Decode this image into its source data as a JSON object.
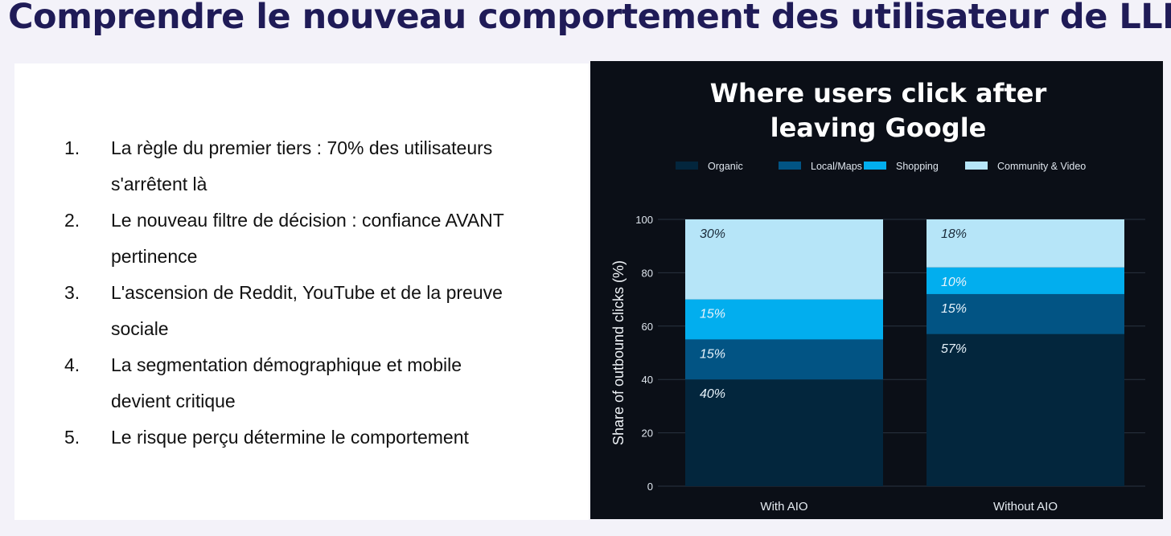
{
  "slide": {
    "title": "Comprendre le nouveau comportement des utilisateur de LLM"
  },
  "points": [
    {
      "num": "1.",
      "text": "La règle du premier tiers : 70% des utilisateurs s'arrêtent là"
    },
    {
      "num": "2.",
      "text": "Le nouveau filtre de décision : confiance AVANT pertinence"
    },
    {
      "num": "3.",
      "text": "L'ascension de Reddit, YouTube et de la preuve sociale"
    },
    {
      "num": "4.",
      "text": "La segmentation démographique et mobile devient critique"
    },
    {
      "num": "5.",
      "text": "Le risque perçu détermine le comportement"
    }
  ],
  "chart_data": {
    "type": "bar",
    "stacked": true,
    "title": [
      "Where users click after",
      "leaving Google"
    ],
    "ylabel": "Share of outbound clicks (%)",
    "xlabel": "",
    "ylim": [
      0,
      100
    ],
    "yticks": [
      0,
      20,
      40,
      60,
      80,
      100
    ],
    "grid": true,
    "legend_position": "top",
    "categories": [
      "With AIO",
      "Without AIO"
    ],
    "series": [
      {
        "name": "Organic",
        "color": "#03263d",
        "values": [
          40,
          57
        ],
        "labels": [
          "40%",
          "57%"
        ]
      },
      {
        "name": "Local/Maps",
        "color": "#025484",
        "values": [
          15,
          15
        ],
        "labels": [
          "15%",
          "15%"
        ]
      },
      {
        "name": "Shopping",
        "color": "#02aeee",
        "values": [
          15,
          10
        ],
        "labels": [
          "15%",
          "10%"
        ]
      },
      {
        "name": "Community & Video",
        "color": "#b6e5f8",
        "values": [
          30,
          18
        ],
        "labels": [
          "30%",
          "18%"
        ]
      }
    ]
  }
}
